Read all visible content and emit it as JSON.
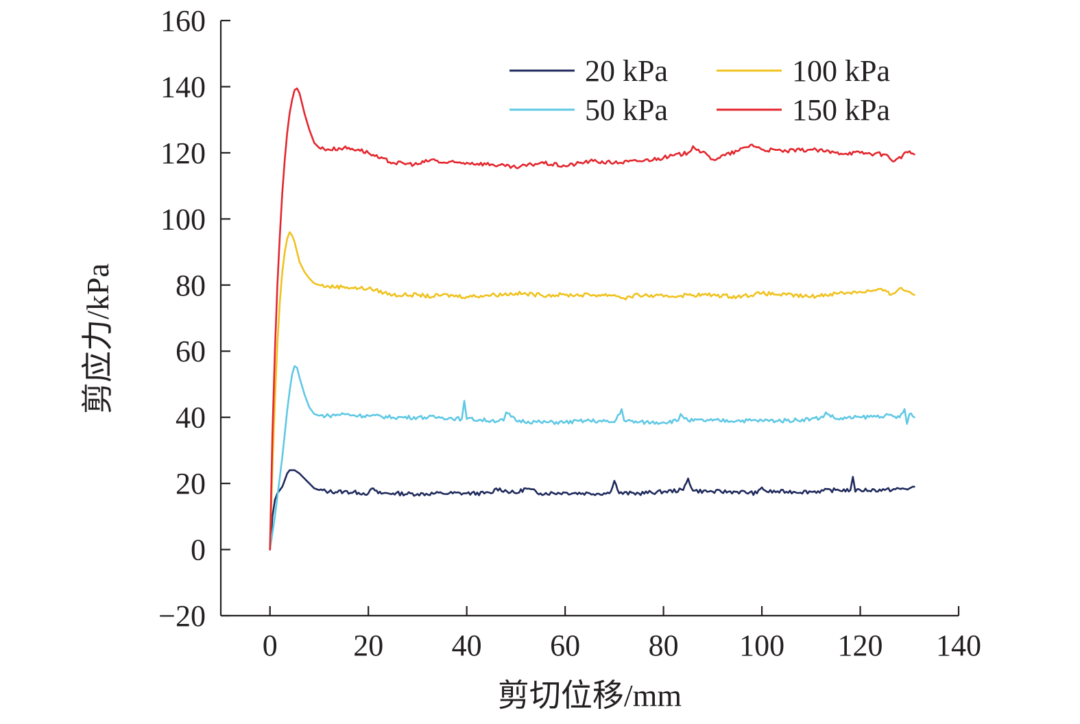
{
  "chart_data": {
    "type": "line",
    "xlabel": "剪切位移/mm",
    "ylabel": "剪应力/kPa",
    "xlim": [
      -10,
      140
    ],
    "ylim": [
      -20,
      160
    ],
    "xticks": [
      0,
      20,
      40,
      60,
      80,
      100,
      120,
      140
    ],
    "yticks": [
      -20,
      0,
      20,
      40,
      60,
      80,
      100,
      120,
      140,
      160
    ],
    "xtick_labels": [
      "0",
      "20",
      "40",
      "60",
      "80",
      "100",
      "120",
      "140"
    ],
    "ytick_labels": [
      "−20",
      "0",
      "20",
      "40",
      "60",
      "80",
      "100",
      "120",
      "140",
      "160"
    ],
    "grid": false,
    "legend_position": "top-right",
    "series": [
      {
        "name": "20 kPa",
        "color": "#1f2a5c",
        "x": [
          0,
          0.5,
          1,
          1.5,
          2,
          2.5,
          3,
          3.5,
          4,
          5,
          6,
          7,
          8,
          9,
          10,
          12,
          15,
          18,
          20,
          21,
          22,
          25,
          30,
          35,
          40,
          45,
          46,
          50,
          52,
          55,
          60,
          65,
          69,
          70,
          71,
          75,
          80,
          84,
          85,
          86,
          90,
          95,
          99,
          100,
          101,
          105,
          110,
          115,
          118,
          118.5,
          119,
          120,
          125,
          130,
          131
        ],
        "values": [
          0,
          10,
          15,
          17,
          18,
          19,
          21,
          23,
          24,
          24,
          23,
          21.5,
          20,
          18.5,
          18,
          17.5,
          17.5,
          17.2,
          17,
          18.5,
          17,
          17,
          16.8,
          17,
          17,
          17,
          18.5,
          17,
          18.5,
          17,
          17.2,
          17,
          17,
          20.8,
          17,
          17,
          17.5,
          18,
          21.5,
          17.8,
          17.5,
          17.5,
          17,
          18.8,
          17.5,
          17.5,
          17.5,
          18,
          18,
          22,
          17.5,
          18,
          18,
          18.5,
          19
        ]
      },
      {
        "name": "50 kPa",
        "color": "#5fc8e4",
        "x": [
          0,
          0.5,
          1,
          1.5,
          2,
          2.5,
          3,
          3.5,
          4,
          4.5,
          5,
          5.5,
          6,
          7,
          8,
          9,
          10,
          12,
          15,
          18,
          20,
          25,
          30,
          35,
          39,
          39.5,
          40,
          45,
          47.5,
          48,
          50,
          55,
          60,
          65,
          70,
          71.5,
          72,
          75,
          80,
          83,
          83.5,
          85,
          90,
          95,
          100,
          105,
          110,
          112.5,
          113,
          115,
          120,
          125,
          128,
          129,
          129.5,
          130,
          131
        ],
        "values": [
          0,
          5,
          10,
          16,
          22,
          28,
          35,
          42,
          48,
          53,
          55.5,
          55,
          52,
          47,
          43,
          41,
          40.5,
          40.5,
          41,
          40.5,
          40.5,
          40,
          40,
          40,
          39.5,
          45,
          39.5,
          39,
          39,
          41.5,
          39,
          38.5,
          38.5,
          39,
          38.5,
          42.5,
          39,
          38.5,
          38.5,
          39,
          41,
          39,
          39,
          39,
          39,
          39,
          39.5,
          40,
          41.5,
          39.5,
          40,
          40.5,
          40,
          42.5,
          38,
          41,
          40
        ]
      },
      {
        "name": "100 kPa",
        "color": "#f0c21e",
        "x": [
          0,
          0.5,
          1,
          1.5,
          2,
          2.5,
          3,
          3.5,
          4,
          4.5,
          5,
          5.5,
          6,
          7,
          8,
          9,
          10,
          12,
          15,
          18,
          20,
          25,
          30,
          33,
          35,
          40,
          45,
          50,
          55,
          60,
          65,
          70,
          72,
          75,
          80,
          85,
          90,
          95,
          100,
          105,
          110,
          115,
          120,
          125,
          126,
          128,
          130,
          131
        ],
        "values": [
          0,
          25,
          45,
          62,
          75,
          84,
          90,
          94,
          96,
          95,
          93,
          90,
          87,
          84,
          82,
          80.5,
          80,
          79.5,
          79.5,
          79,
          79,
          77,
          77,
          76.5,
          77,
          76.5,
          77,
          77.5,
          77,
          77,
          77,
          77,
          76,
          77,
          76.5,
          77,
          77,
          76.5,
          77.5,
          77,
          76.5,
          77.5,
          78,
          78.5,
          77,
          79,
          78,
          77
        ]
      },
      {
        "name": "150 kPa",
        "color": "#e3262d",
        "x": [
          0,
          0.5,
          1,
          1.5,
          2,
          2.5,
          3,
          3.5,
          4,
          4.5,
          5,
          5.5,
          6,
          7,
          8,
          9,
          10,
          12,
          15,
          18,
          20,
          22,
          25,
          30,
          33,
          35,
          40,
          45,
          50,
          55,
          60,
          65,
          70,
          75,
          80,
          85,
          86,
          90,
          95,
          98,
          100,
          105,
          110,
          115,
          120,
          125,
          127,
          130,
          131
        ],
        "values": [
          0,
          35,
          60,
          80,
          95,
          108,
          118,
          126,
          132,
          136,
          139,
          139.5,
          138,
          132,
          127,
          123,
          121.5,
          121,
          121.5,
          121,
          120,
          118.5,
          117,
          116.5,
          118,
          117,
          117,
          116.5,
          115.5,
          117,
          116,
          117.5,
          117,
          117.5,
          118.5,
          120,
          122,
          118,
          120.5,
          122.5,
          121,
          120.5,
          121,
          120,
          120,
          119.5,
          117.5,
          120.5,
          119.5
        ]
      }
    ]
  }
}
